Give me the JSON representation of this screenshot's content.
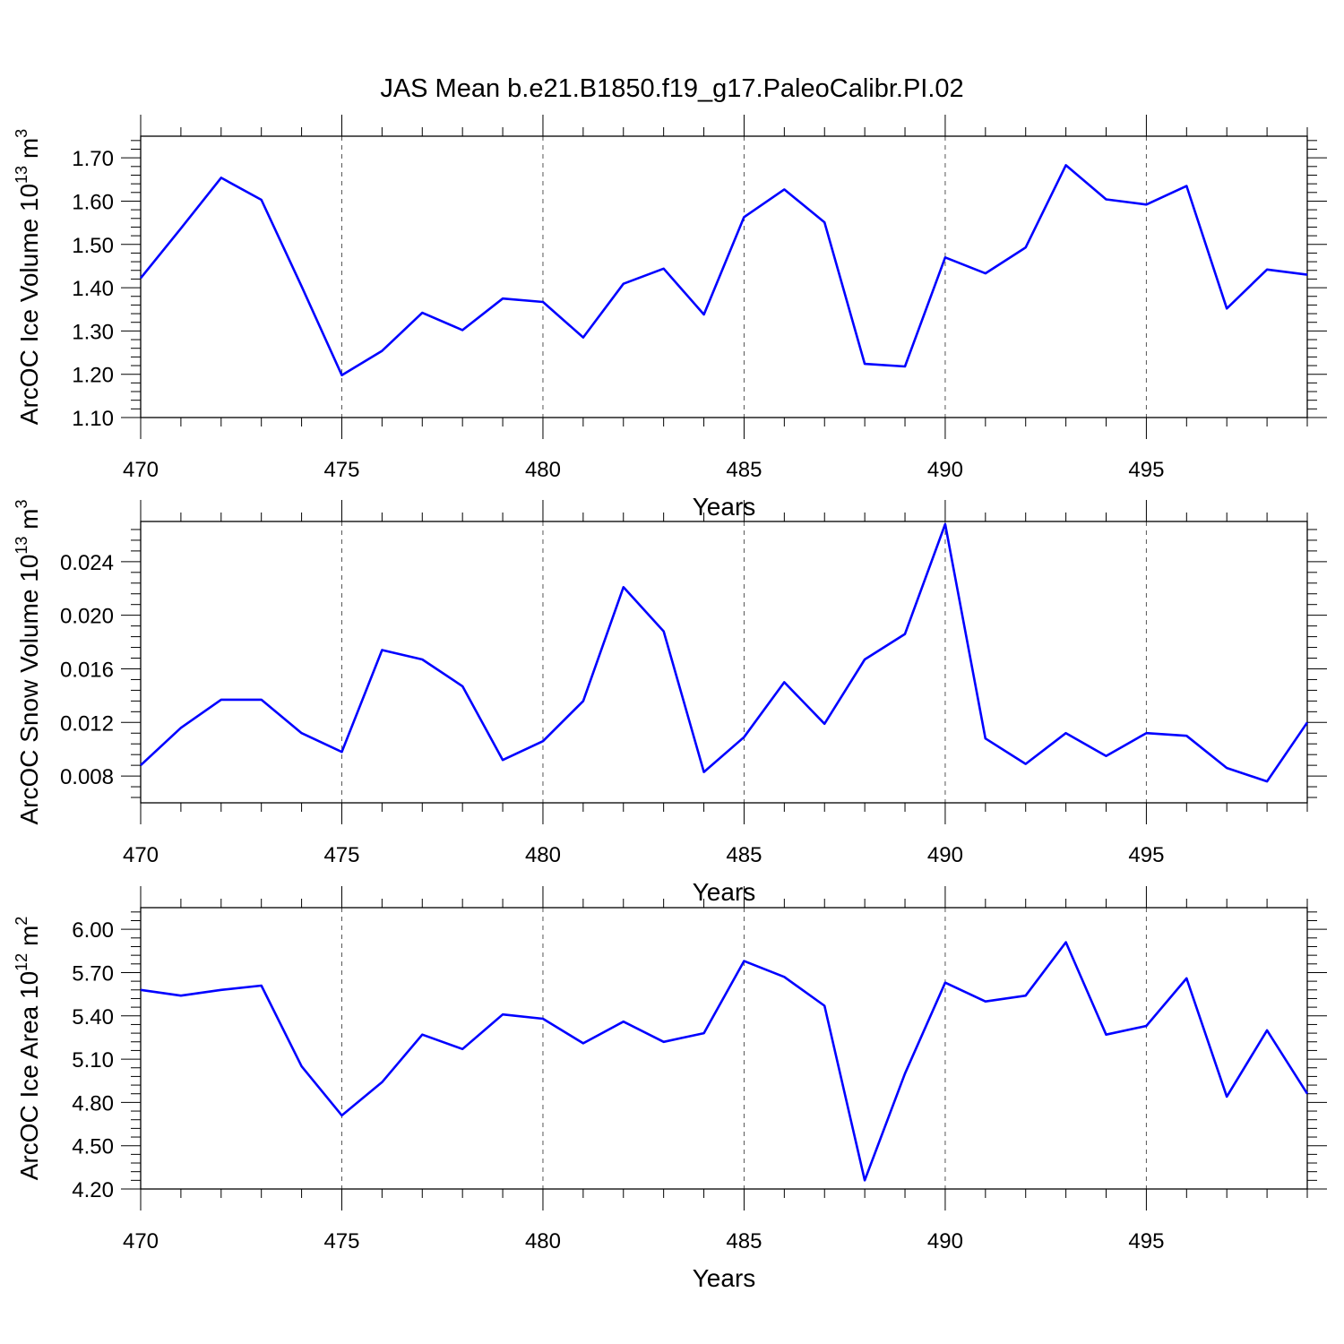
{
  "figure": {
    "title": "JAS Mean b.e21.B1850.f19_g17.PaleoCalibr.PI.02",
    "line_color": "#0000ff"
  },
  "chart_data": [
    {
      "type": "line",
      "title": "JAS Mean b.e21.B1850.f19_g17.PaleoCalibr.PI.02",
      "xlabel": "Years",
      "ylabel_main": "ArcOC Ice Volume 10",
      "ylabel_sup": "13",
      "ylabel_unit": " m",
      "ylabel_unit_sup": "3",
      "xlim": [
        470,
        499
      ],
      "ylim": [
        1.1,
        1.75
      ],
      "x_ticks": [
        470,
        475,
        480,
        485,
        490,
        495
      ],
      "x_tick_labels": [
        "470",
        "475",
        "480",
        "485",
        "490",
        "495"
      ],
      "y_ticks": [
        1.1,
        1.2,
        1.3,
        1.4,
        1.5,
        1.6,
        1.7
      ],
      "y_tick_labels": [
        "1.10",
        "1.20",
        "1.30",
        "1.40",
        "1.50",
        "1.60",
        "1.70"
      ],
      "grid": "vertical dashed at major x ticks",
      "series": [
        {
          "name": "ArcOC Ice Volume",
          "x": [
            470,
            471,
            472,
            473,
            474,
            475,
            476,
            477,
            478,
            479,
            480,
            481,
            482,
            483,
            484,
            485,
            486,
            487,
            488,
            489,
            490,
            491,
            492,
            493,
            494,
            495,
            496,
            497,
            498,
            499
          ],
          "values": [
            1.422,
            1.537,
            1.654,
            1.603,
            1.403,
            1.198,
            1.254,
            1.342,
            1.302,
            1.375,
            1.367,
            1.285,
            1.409,
            1.444,
            1.338,
            1.563,
            1.627,
            1.551,
            1.224,
            1.218,
            1.47,
            1.433,
            1.493,
            1.683,
            1.604,
            1.592,
            1.635,
            1.352,
            1.442,
            1.43
          ]
        }
      ]
    },
    {
      "type": "line",
      "xlabel": "Years",
      "ylabel_main": "ArcOC Snow Volume 10",
      "ylabel_sup": "13",
      "ylabel_unit": " m",
      "ylabel_unit_sup": "3",
      "xlim": [
        470,
        499
      ],
      "ylim": [
        0.006,
        0.027
      ],
      "x_ticks": [
        470,
        475,
        480,
        485,
        490,
        495
      ],
      "x_tick_labels": [
        "470",
        "475",
        "480",
        "485",
        "490",
        "495"
      ],
      "y_ticks": [
        0.008,
        0.012,
        0.016,
        0.02,
        0.024
      ],
      "y_tick_labels": [
        "0.008",
        "0.012",
        "0.016",
        "0.020",
        "0.024"
      ],
      "grid": "vertical dashed at major x ticks",
      "series": [
        {
          "name": "ArcOC Snow Volume",
          "x": [
            470,
            471,
            472,
            473,
            474,
            475,
            476,
            477,
            478,
            479,
            480,
            481,
            482,
            483,
            484,
            485,
            486,
            487,
            488,
            489,
            490,
            491,
            492,
            493,
            494,
            495,
            496,
            497,
            498,
            499
          ],
          "values": [
            0.0088,
            0.0116,
            0.0137,
            0.0137,
            0.0112,
            0.0098,
            0.0174,
            0.0167,
            0.0147,
            0.0092,
            0.0106,
            0.0136,
            0.0221,
            0.0188,
            0.0083,
            0.0109,
            0.015,
            0.0119,
            0.0167,
            0.0186,
            0.0268,
            0.0108,
            0.0089,
            0.0112,
            0.0095,
            0.0112,
            0.011,
            0.0086,
            0.0076,
            0.012
          ]
        }
      ]
    },
    {
      "type": "line",
      "xlabel": "Years",
      "ylabel_main": "ArcOC Ice Area 10",
      "ylabel_sup": "12",
      "ylabel_unit": " m",
      "ylabel_unit_sup": "2",
      "xlim": [
        470,
        499
      ],
      "ylim": [
        4.2,
        6.15
      ],
      "x_ticks": [
        470,
        475,
        480,
        485,
        490,
        495
      ],
      "x_tick_labels": [
        "470",
        "475",
        "480",
        "485",
        "490",
        "495"
      ],
      "y_ticks": [
        4.2,
        4.5,
        4.8,
        5.1,
        5.4,
        5.7,
        6.0
      ],
      "y_tick_labels": [
        "4.20",
        "4.50",
        "4.80",
        "5.10",
        "5.40",
        "5.70",
        "6.00"
      ],
      "grid": "vertical dashed at major x ticks",
      "series": [
        {
          "name": "ArcOC Ice Area",
          "x": [
            470,
            471,
            472,
            473,
            474,
            475,
            476,
            477,
            478,
            479,
            480,
            481,
            482,
            483,
            484,
            485,
            486,
            487,
            488,
            489,
            490,
            491,
            492,
            493,
            494,
            495,
            496,
            497,
            498,
            499
          ],
          "values": [
            5.58,
            5.54,
            5.58,
            5.61,
            5.05,
            4.71,
            4.94,
            5.27,
            5.17,
            5.41,
            5.38,
            5.21,
            5.36,
            5.22,
            5.28,
            5.78,
            5.67,
            5.47,
            4.26,
            5.0,
            5.63,
            5.5,
            5.54,
            5.91,
            5.27,
            5.33,
            5.66,
            4.84,
            5.3,
            4.86
          ]
        }
      ]
    }
  ]
}
